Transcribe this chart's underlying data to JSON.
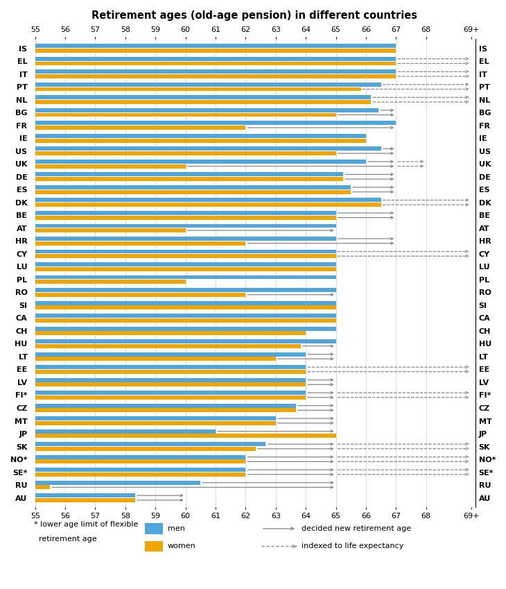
{
  "title": "Retirement ages (old-age pension) in different countries",
  "countries": [
    "IS",
    "EL",
    "IT",
    "PT",
    "NL",
    "BG",
    "FR",
    "IE",
    "US",
    "UK",
    "DE",
    "ES",
    "DK",
    "BE",
    "AT",
    "HR",
    "CY",
    "LU",
    "PL",
    "RO",
    "SI",
    "CA",
    "CH",
    "HU",
    "LT",
    "EE",
    "LV",
    "FI*",
    "CZ",
    "MT",
    "JP",
    "SK",
    "NO*",
    "SE*",
    "RU",
    "AU"
  ],
  "men": [
    67,
    67,
    67,
    66.5,
    66.17,
    66.42,
    67,
    66,
    66.5,
    66,
    65.25,
    65.5,
    66.5,
    65,
    65,
    65,
    65,
    65,
    65,
    65,
    65,
    65,
    65,
    65,
    64,
    64,
    64,
    64,
    63.67,
    63,
    61,
    62.67,
    62,
    62,
    60.5,
    58.33
  ],
  "women": [
    67,
    67,
    67,
    65.83,
    66.17,
    65,
    62,
    66,
    65,
    60,
    65.25,
    65.5,
    66.5,
    65,
    60,
    62,
    65,
    65,
    60,
    62,
    65,
    65,
    64,
    63.83,
    63,
    64,
    64,
    64,
    63.67,
    63,
    65,
    62.33,
    62,
    62,
    55.5,
    58.33
  ],
  "color_men": "#4ea6dc",
  "color_women": "#f0a500",
  "xmin": 55,
  "xmax": 69.5,
  "bar_height": 0.32,
  "bar_gap": 0.04,
  "solid_arrows": [
    [
      "BG",
      66.42,
      67,
      65,
      67
    ],
    [
      "FR",
      67,
      67,
      62,
      67
    ],
    [
      "US",
      66.5,
      67,
      65,
      67
    ],
    [
      "UK",
      66,
      67,
      60,
      67
    ],
    [
      "DE",
      65.25,
      67,
      65.25,
      67
    ],
    [
      "ES",
      65.5,
      67,
      65.5,
      67
    ],
    [
      "BE",
      65,
      67,
      65,
      67
    ],
    [
      "AT",
      65,
      65,
      60,
      65
    ],
    [
      "HR",
      65,
      67,
      62,
      67
    ],
    [
      "HU",
      65,
      65,
      63.83,
      65
    ],
    [
      "LT",
      64,
      65,
      63,
      65
    ],
    [
      "LV",
      64,
      65,
      64,
      65
    ],
    [
      "FI*",
      64,
      65,
      64,
      65
    ],
    [
      "CZ",
      63.67,
      65,
      63.67,
      65
    ],
    [
      "MT",
      63,
      65,
      63,
      65
    ],
    [
      "JP",
      61,
      65,
      65,
      65
    ],
    [
      "RO",
      65,
      65,
      62,
      65
    ],
    [
      "SK",
      62.67,
      65,
      62.33,
      65
    ],
    [
      "NO*",
      62,
      65,
      62,
      65
    ],
    [
      "SE*",
      62,
      65,
      62,
      65
    ],
    [
      "RU",
      60.5,
      65,
      55.5,
      65
    ],
    [
      "AU",
      58.33,
      60,
      58.33,
      60
    ]
  ],
  "dotted_arrows": [
    [
      "EL",
      67,
      69.5,
      67,
      69.5
    ],
    [
      "IT",
      67,
      69.5,
      67,
      69.5
    ],
    [
      "PT",
      66.5,
      69.5,
      65.83,
      69.5
    ],
    [
      "NL",
      66.17,
      69.5,
      66.17,
      69.5
    ],
    [
      "UK",
      67,
      68,
      67,
      68
    ],
    [
      "DK",
      66.5,
      69.5,
      66.5,
      69.5
    ],
    [
      "CY",
      65,
      69.5,
      65,
      69.5
    ],
    [
      "EE",
      64,
      69.5,
      64,
      69.5
    ],
    [
      "FI*",
      65,
      69.5,
      65,
      69.5
    ],
    [
      "SK",
      65,
      69.5,
      65,
      69.5
    ],
    [
      "NO*",
      65,
      69.5,
      65,
      69.5
    ],
    [
      "SE*",
      65,
      69.5,
      65,
      69.5
    ]
  ],
  "xtick_vals": [
    55,
    56,
    57,
    58,
    59,
    60,
    61,
    62,
    63,
    64,
    65,
    66,
    67,
    68,
    69.5
  ],
  "xtick_labels": [
    "55",
    "56",
    "57",
    "58",
    "59",
    "60",
    "61",
    "62",
    "63",
    "64",
    "65",
    "66",
    "67",
    "68",
    "69+"
  ]
}
